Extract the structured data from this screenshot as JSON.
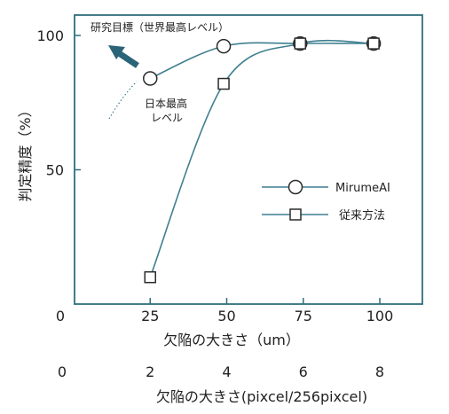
{
  "chart_data": {
    "type": "line",
    "xlabel": "欠陥の大きさ（um）",
    "x2label": "欠陥の大きさ(pixcel/256pixcel)",
    "ylabel": "判定精度（%）",
    "xlim": [
      0,
      100
    ],
    "ylim": [
      0,
      100
    ],
    "x_ticks": [
      "0",
      "25",
      "50",
      "75",
      "100"
    ],
    "x_tick_values": [
      0,
      25,
      50,
      75,
      100
    ],
    "x2_ticks": [
      "0",
      "2",
      "4",
      "6",
      "8"
    ],
    "y_ticks": [
      "50",
      "100"
    ],
    "y_tick_values": [
      50,
      100
    ],
    "grid": false,
    "legend_position": "center-right",
    "series": [
      {
        "name": "MirumeAI",
        "marker": "circle",
        "color": "#3f7f8f",
        "x": [
          25,
          49,
          74,
          98
        ],
        "y": [
          84,
          96,
          97,
          97
        ]
      },
      {
        "name": "従来方法",
        "marker": "square",
        "color": "#3f7f8f",
        "x": [
          25,
          49,
          74,
          98
        ],
        "y": [
          10,
          82,
          97,
          97
        ]
      }
    ],
    "annotations": {
      "target_label": "研究目標（世界最高レベル）",
      "japan_best_line1": "日本最高",
      "japan_best_line2": "レベル"
    },
    "colors": {
      "axis": "#2f6e7d",
      "arrow": "#2b6478",
      "line": "#3f7f8f"
    }
  }
}
